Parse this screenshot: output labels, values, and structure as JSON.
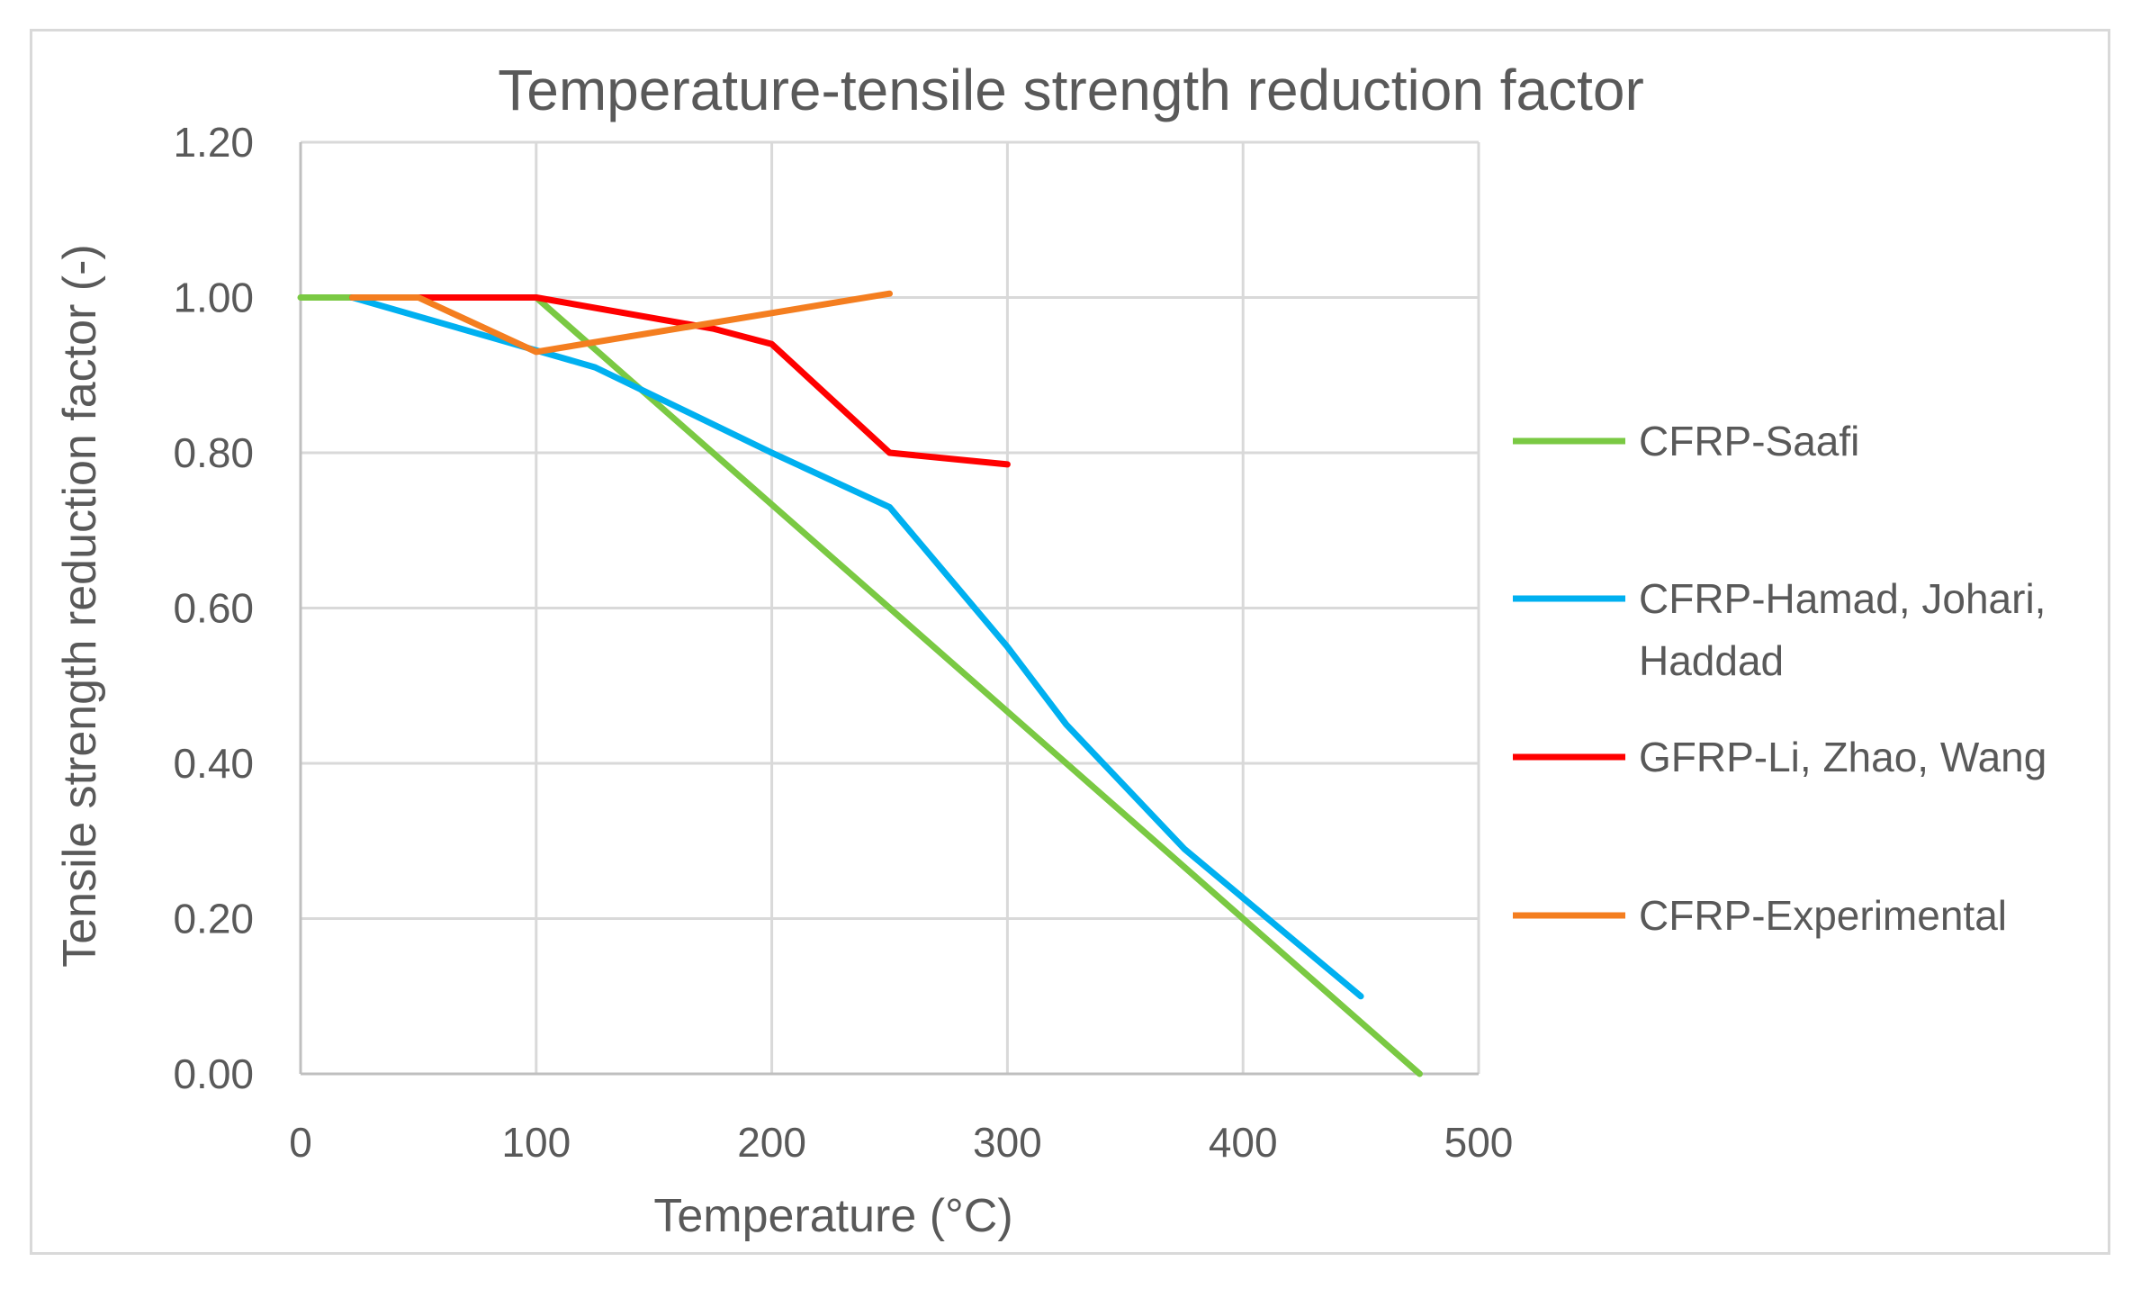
{
  "chart_data": {
    "type": "line",
    "title": "Temperature-tensile strength reduction factor",
    "xlabel": "Temperature (°C)",
    "ylabel": "Tensile strength reduction factor (-)",
    "xlim": [
      0,
      500
    ],
    "ylim": [
      0,
      1.2
    ],
    "xticks": [
      "0",
      "100",
      "200",
      "300",
      "400",
      "500"
    ],
    "yticks": [
      "0.00",
      "0.20",
      "0.40",
      "0.60",
      "0.80",
      "1.00",
      "1.20"
    ],
    "grid": true,
    "legend_position": "right",
    "series": [
      {
        "name": "CFRP-Saafi",
        "legend_lines": [
          "CFRP-Saafi"
        ],
        "color": "#7ac943",
        "x": [
          0,
          100,
          475
        ],
        "y": [
          1.0,
          1.0,
          0.0
        ]
      },
      {
        "name": "CFRP-Hamad, Johari, Haddad",
        "legend_lines": [
          "CFRP-Hamad, Johari,",
          "Haddad"
        ],
        "color": "#00b0f0",
        "x": [
          22,
          125,
          200,
          250,
          300,
          325,
          375,
          450
        ],
        "y": [
          1.0,
          0.91,
          0.8,
          0.73,
          0.55,
          0.45,
          0.29,
          0.1
        ]
      },
      {
        "name": "GFRP-Li, Zhao, Wang",
        "legend_lines": [
          "GFRP-Li, Zhao, Wang"
        ],
        "color": "#ff0000",
        "x": [
          22,
          100,
          175,
          200,
          250,
          300
        ],
        "y": [
          1.0,
          1.0,
          0.96,
          0.94,
          0.8,
          0.785
        ]
      },
      {
        "name": "CFRP-Experimental",
        "legend_lines": [
          "CFRP-Experimental"
        ],
        "color": "#f47e20",
        "x": [
          22,
          50,
          100,
          250
        ],
        "y": [
          1.0,
          1.0,
          0.93,
          1.005
        ]
      }
    ]
  }
}
